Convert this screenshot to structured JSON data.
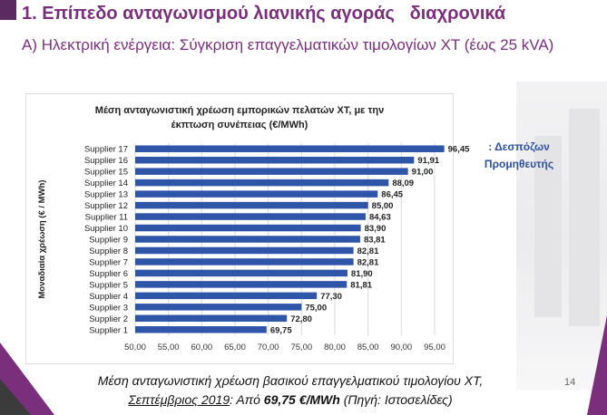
{
  "title": "1. Επίπεδο ανταγωνισμού λιανικής αγοράς   διαχρονικά",
  "subtitle": "Α)  Ηλεκτρική ενέργεια:  Σύγκριση επαγγελματικών τιμολογίων ΧΤ (έως 25 kVA)",
  "annotation": {
    "line1": ": Δεσπόζων",
    "line2": "Προμηθευτής"
  },
  "footer": {
    "line1": "Μέση ανταγωνιστική χρέωση βασικού επαγγελματικού τιμολογίου ΧΤ,",
    "date": "Σεπτέμβριος 2019",
    "mid": ": Από ",
    "value": "69,75 €/MWh",
    "source": " (Πηγή: Ιστοσελίδες)"
  },
  "page_number": "14",
  "colors": {
    "bar": "#2e55a8",
    "accent": "#7a2f7c",
    "annotation": "#2d4f9e"
  },
  "chart_data": {
    "type": "bar",
    "orientation": "horizontal",
    "title": "Μέση ανταγωνιστική χρέωση εμπορικών πελατών ΧΤ, με την έκπτωση συνέπειας (€/MWh)",
    "title_line1": "Μέση ανταγωνιστική χρέωση εμπορικών πελατών ΧΤ, με την",
    "title_line2": "έκπτωση συνέπειας (€/MWh)",
    "ylabel": "Μοναδιαία χρέωση (€ / MWh)",
    "xlabel": "",
    "categories": [
      "Supplier 17",
      "Supplier 16",
      "Supplier 15",
      "Supplier 14",
      "Supplier 13",
      "Supplier 12",
      "Supplier 11",
      "Supplier 10",
      "Supplier 9",
      "Supplier 8",
      "Supplier 7",
      "Supplier 6",
      "Supplier 5",
      "Supplier 4",
      "Supplier 3",
      "Supplier 2",
      "Supplier 1"
    ],
    "values": [
      96.45,
      91.91,
      91.0,
      88.09,
      86.45,
      85.0,
      84.63,
      83.9,
      83.81,
      82.81,
      82.81,
      81.9,
      81.81,
      77.3,
      75.0,
      72.8,
      69.75
    ],
    "value_labels": [
      "96,45",
      "91,91",
      "91,00",
      "88,09",
      "86,45",
      "85,00",
      "84,63",
      "83,90",
      "83,81",
      "82,81",
      "82,81",
      "81,90",
      "81,81",
      "77,30",
      "75,00",
      "72,80",
      "69,75"
    ],
    "xlim": [
      50,
      95
    ],
    "xticks": [
      "50,00",
      "55,00",
      "60,00",
      "65,00",
      "70,00",
      "75,00",
      "80,00",
      "85,00",
      "90,00",
      "95,00"
    ],
    "grid": true,
    "legend": "none"
  }
}
